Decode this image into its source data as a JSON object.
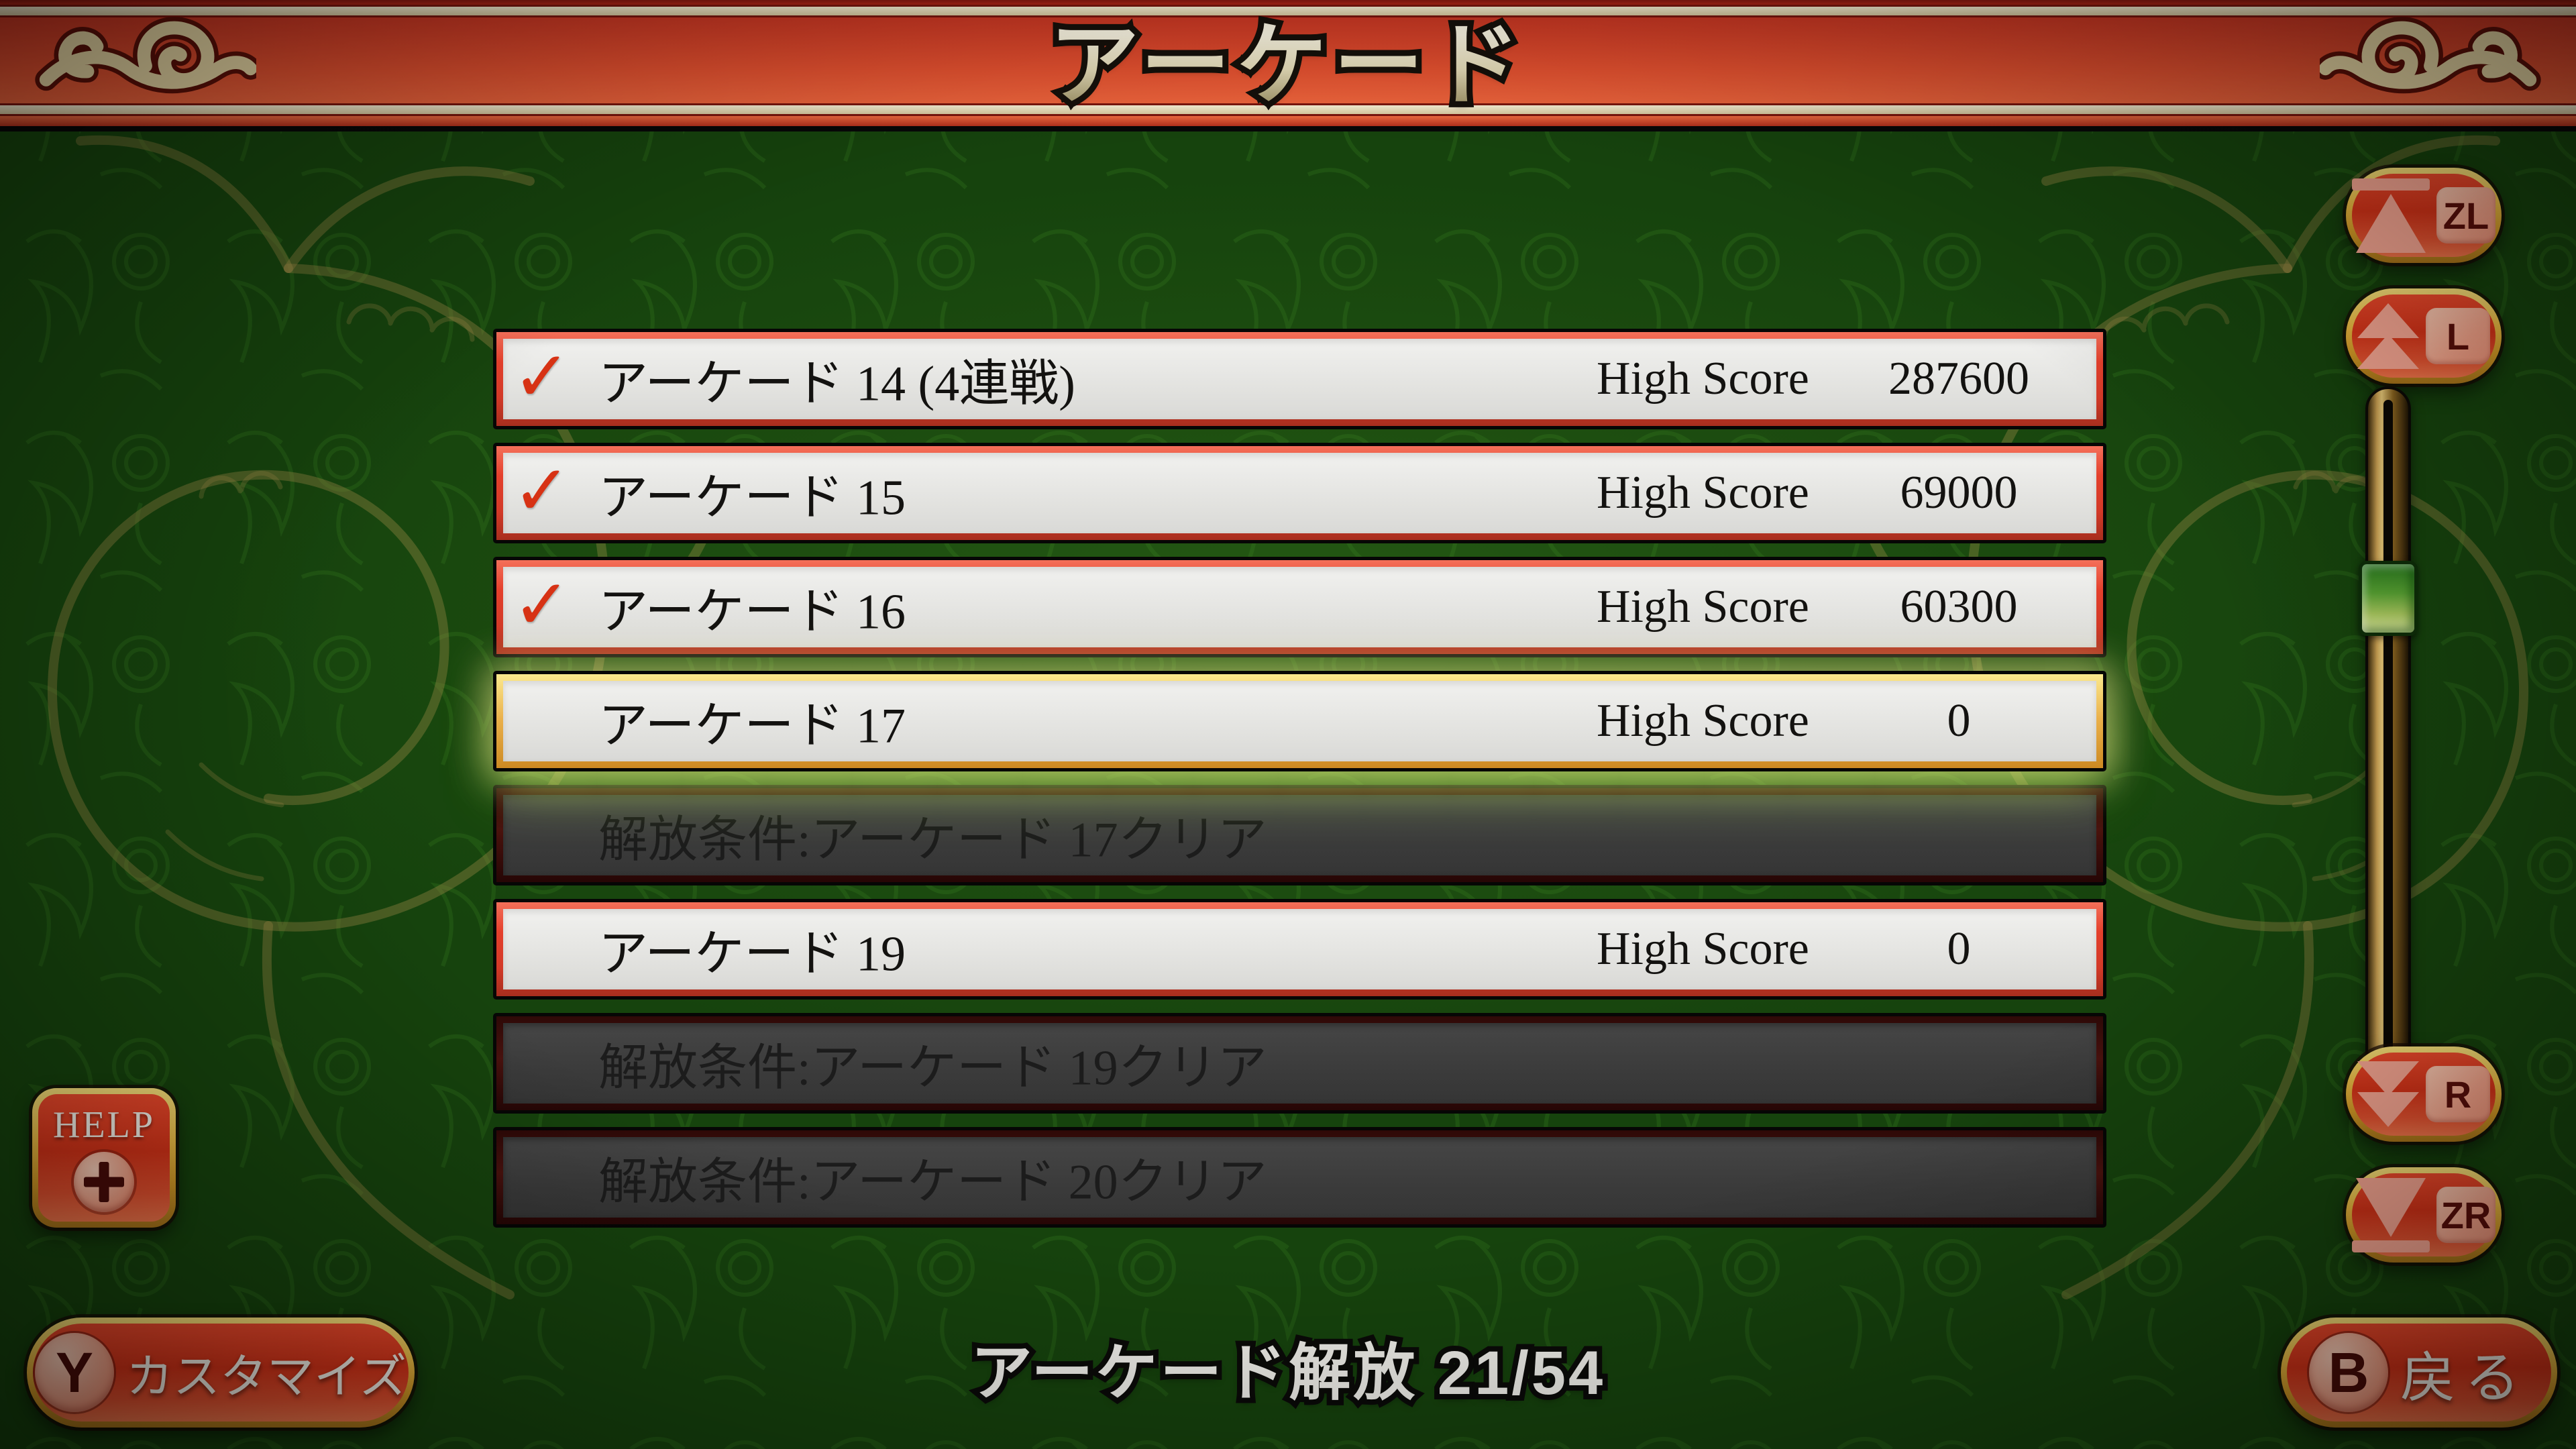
{
  "header": {
    "title": "アーケード"
  },
  "list": {
    "rows": [
      {
        "type": "unlocked",
        "checked": true,
        "label": "アーケード 14 (4連戦)",
        "score_label": "High Score",
        "score": "287600"
      },
      {
        "type": "unlocked",
        "checked": true,
        "label": "アーケード 15",
        "score_label": "High Score",
        "score": "69000"
      },
      {
        "type": "unlocked",
        "checked": true,
        "label": "アーケード 16",
        "score_label": "High Score",
        "score": "60300"
      },
      {
        "type": "selected",
        "checked": false,
        "label": "アーケード 17",
        "score_label": "High Score",
        "score": "0"
      },
      {
        "type": "locked",
        "checked": false,
        "label": "解放条件:アーケード 17クリア",
        "score_label": "",
        "score": ""
      },
      {
        "type": "unlocked",
        "checked": false,
        "label": "アーケード 19",
        "score_label": "High Score",
        "score": "0"
      },
      {
        "type": "locked",
        "checked": false,
        "label": "解放条件:アーケード 19クリア",
        "score_label": "",
        "score": ""
      },
      {
        "type": "locked",
        "checked": false,
        "label": "解放条件:アーケード 20クリア",
        "score_label": "",
        "score": ""
      }
    ]
  },
  "footer": {
    "status": "アーケード解放 21/54"
  },
  "controls": {
    "help": {
      "label": "HELP",
      "icon": "plus-button-icon"
    },
    "customize": {
      "key": "Y",
      "label": "カスタマイズ"
    },
    "back": {
      "key": "B",
      "label": "戻る"
    },
    "scroll_top": {
      "key": "ZL"
    },
    "page_up": {
      "key": "L"
    },
    "page_down": {
      "key": "R"
    },
    "scroll_bottom": {
      "key": "ZR"
    }
  },
  "icons": {
    "check": "✓"
  },
  "colors": {
    "accent_red": "#d63318",
    "gold": "#edbd45",
    "bg_green": "#16430d",
    "selected_gold": "#eab04a",
    "row_light": "#e7e7e4",
    "locked_gray": "#3f3f3f",
    "check_red": "#d73214",
    "thumb_green": "#57a132"
  }
}
